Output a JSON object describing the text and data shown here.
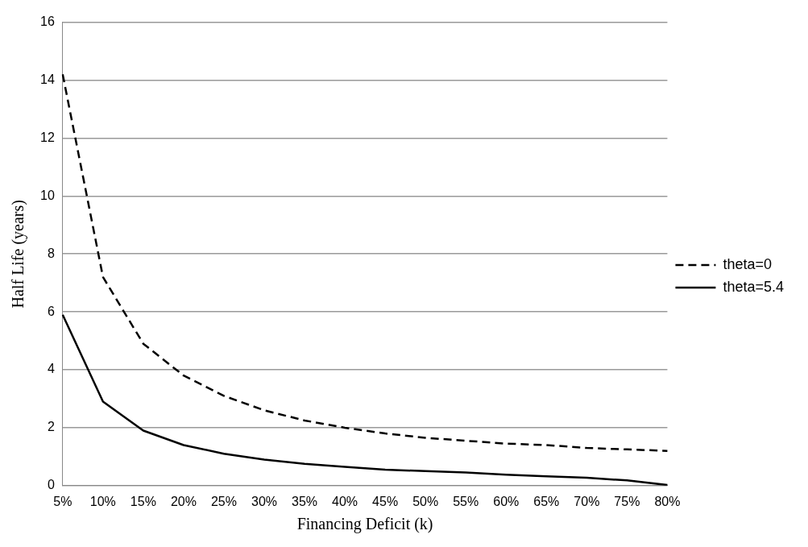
{
  "chart_data": {
    "type": "line",
    "xlabel": "Financing Deficit (k)",
    "ylabel": "Half Life (years)",
    "categories": [
      "5%",
      "10%",
      "15%",
      "20%",
      "25%",
      "30%",
      "35%",
      "40%",
      "45%",
      "50%",
      "55%",
      "60%",
      "65%",
      "70%",
      "75%",
      "80%"
    ],
    "series": [
      {
        "name": "theta=0",
        "color": "#000000",
        "line_style": "dashed",
        "values": [
          14.2,
          7.2,
          4.9,
          3.8,
          3.1,
          2.6,
          2.25,
          2.0,
          1.8,
          1.65,
          1.55,
          1.45,
          1.4,
          1.3,
          1.25,
          1.2
        ]
      },
      {
        "name": "theta=5.4",
        "color": "#000000",
        "line_style": "solid",
        "values": [
          5.9,
          2.9,
          1.9,
          1.4,
          1.1,
          0.9,
          0.75,
          0.65,
          0.55,
          0.5,
          0.45,
          0.38,
          0.32,
          0.27,
          0.18,
          0.02
        ]
      }
    ],
    "ylim": [
      0,
      16
    ],
    "yticks": [
      0,
      2,
      4,
      6,
      8,
      10,
      12,
      14,
      16
    ],
    "grid": "y",
    "legend": "right",
    "marker": "none"
  }
}
